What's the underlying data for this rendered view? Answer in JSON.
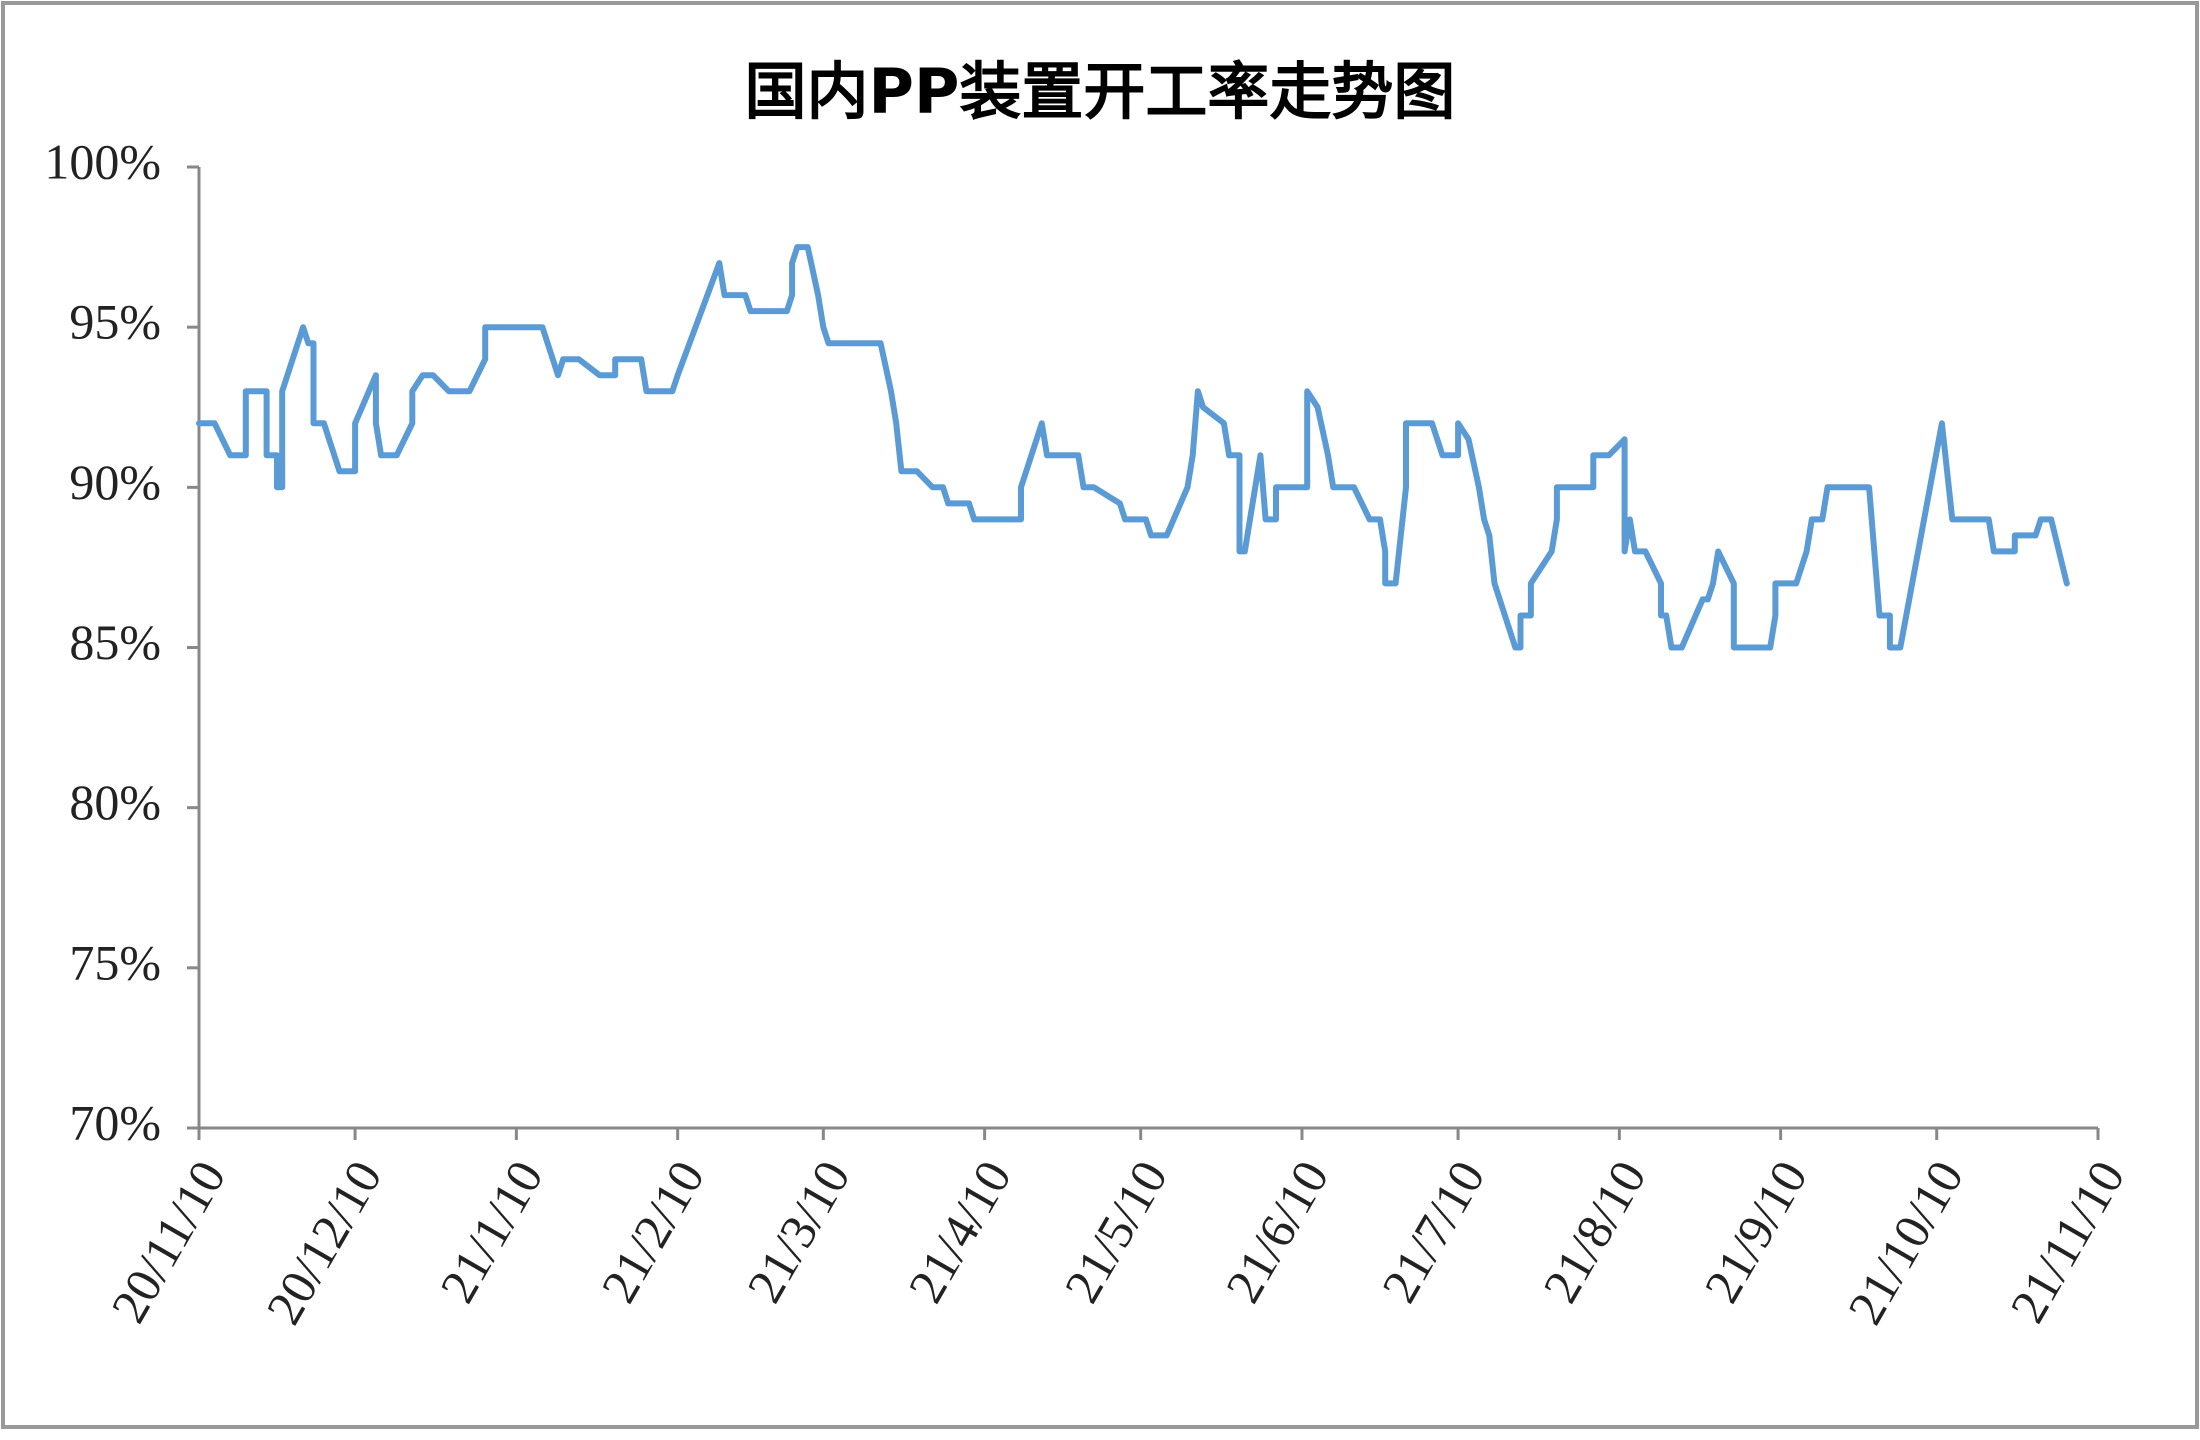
{
  "chart_data": {
    "type": "line",
    "title": "国内PP装置开工率走势图",
    "x": [
      "2020-11-10",
      "2020-11-13",
      "2020-11-16",
      "2020-11-19",
      "2020-11-19",
      "2020-11-23",
      "2020-11-23",
      "2020-11-25",
      "2020-11-25",
      "2020-11-26",
      "2020-11-26",
      "2020-11-30",
      "2020-12-01",
      "2020-12-02",
      "2020-12-02",
      "2020-12-04",
      "2020-12-07",
      "2020-12-10",
      "2020-12-10",
      "2020-12-14",
      "2020-12-14",
      "2020-12-15",
      "2020-12-18",
      "2020-12-21",
      "2020-12-21",
      "2020-12-23",
      "2020-12-25",
      "2020-12-28",
      "2021-01-01",
      "2021-01-04",
      "2021-01-04",
      "2021-01-15",
      "2021-01-18",
      "2021-01-19",
      "2021-01-22",
      "2021-01-26",
      "2021-01-29",
      "2021-01-29",
      "2021-02-03",
      "2021-02-04",
      "2021-02-09",
      "2021-02-10",
      "2021-02-18",
      "2021-02-19",
      "2021-02-23",
      "2021-02-24",
      "2021-03-03",
      "2021-03-04",
      "2021-03-04",
      "2021-03-05",
      "2021-03-07",
      "2021-03-09",
      "2021-03-10",
      "2021-03-11",
      "2021-03-21",
      "2021-03-23",
      "2021-03-24",
      "2021-03-25",
      "2021-03-28",
      "2021-03-31",
      "2021-04-02",
      "2021-04-03",
      "2021-04-07",
      "2021-04-08",
      "2021-04-17",
      "2021-04-17",
      "2021-04-21",
      "2021-04-22",
      "2021-04-28",
      "2021-04-29",
      "2021-05-01",
      "2021-05-06",
      "2021-05-07",
      "2021-05-11",
      "2021-05-12",
      "2021-05-15",
      "2021-05-19",
      "2021-05-20",
      "2021-05-21",
      "2021-05-22",
      "2021-05-26",
      "2021-05-27",
      "2021-05-29",
      "2021-05-29",
      "2021-05-30",
      "2021-06-02",
      "2021-06-03",
      "2021-06-05",
      "2021-06-05",
      "2021-06-11",
      "2021-06-11",
      "2021-06-13",
      "2021-06-15",
      "2021-06-16",
      "2021-06-20",
      "2021-06-23",
      "2021-06-25",
      "2021-06-26",
      "2021-06-26",
      "2021-06-28",
      "2021-06-30",
      "2021-06-30",
      "2021-07-05",
      "2021-07-07",
      "2021-07-10",
      "2021-07-10",
      "2021-07-12",
      "2021-07-14",
      "2021-07-15",
      "2021-07-16",
      "2021-07-17",
      "2021-07-18",
      "2021-07-21",
      "2021-07-22",
      "2021-07-22",
      "2021-07-24",
      "2021-07-24",
      "2021-07-28",
      "2021-07-29",
      "2021-07-29",
      "2021-08-05",
      "2021-08-05",
      "2021-08-08",
      "2021-08-11",
      "2021-08-11",
      "2021-08-12",
      "2021-08-13",
      "2021-08-15",
      "2021-08-18",
      "2021-08-18",
      "2021-08-19",
      "2021-08-20",
      "2021-08-22",
      "2021-08-26",
      "2021-08-27",
      "2021-08-28",
      "2021-08-29",
      "2021-08-29",
      "2021-09-01",
      "2021-09-01",
      "2021-09-08",
      "2021-09-09",
      "2021-09-09",
      "2021-09-13",
      "2021-09-15",
      "2021-09-16",
      "2021-09-18",
      "2021-09-19",
      "2021-09-27",
      "2021-09-29",
      "2021-10-01",
      "2021-10-01",
      "2021-10-03",
      "2021-10-11",
      "2021-10-13",
      "2021-10-20",
      "2021-10-21",
      "2021-10-25",
      "2021-10-25",
      "2021-10-29",
      "2021-10-30",
      "2021-11-01",
      "2021-11-04"
    ],
    "values": [
      92,
      92,
      91,
      91,
      93,
      93,
      91,
      91,
      90,
      90,
      93,
      95,
      94.5,
      94.5,
      92,
      92,
      90.5,
      90.5,
      92,
      93.5,
      92,
      91,
      91,
      92,
      93,
      93.5,
      93.5,
      93,
      93,
      94,
      95,
      95,
      93.5,
      94,
      94,
      93.5,
      93.5,
      94,
      94,
      93,
      93,
      93.5,
      97,
      96,
      96,
      95.5,
      95.5,
      96,
      97,
      97.5,
      97.5,
      96,
      95,
      94.5,
      94.5,
      93,
      92,
      90.5,
      90.5,
      90,
      90,
      89.5,
      89.5,
      89,
      89,
      90,
      92,
      91,
      91,
      90,
      90,
      89.5,
      89,
      89,
      88.5,
      88.5,
      90,
      91,
      93,
      92.5,
      92,
      91,
      91,
      88,
      88,
      91,
      89,
      89,
      90,
      90,
      93,
      92.5,
      91,
      90,
      90,
      89,
      89,
      88,
      87,
      87,
      90,
      92,
      92,
      91,
      91,
      92,
      91.5,
      90,
      89,
      88.5,
      87,
      86.5,
      85,
      85,
      86,
      86,
      87,
      88,
      89,
      90,
      90,
      91,
      91,
      91.5,
      88,
      89,
      88,
      88,
      87,
      86,
      86,
      85,
      85,
      86.5,
      86.5,
      87,
      88,
      88,
      87,
      85,
      85,
      86,
      87,
      87,
      88,
      89,
      89,
      90,
      90,
      86,
      86,
      85,
      85,
      92,
      89,
      89,
      88,
      88,
      88.5,
      88.5,
      89,
      89,
      87
    ],
    "color": "#5b9bd5",
    "xlim": [
      "2020-11-10",
      "2021-11-10"
    ],
    "xticks": [
      {
        "value": "2020-11-10",
        "label": "20/11/10"
      },
      {
        "value": "2020-12-10",
        "label": "20/12/10"
      },
      {
        "value": "2021-01-10",
        "label": "21/1/10"
      },
      {
        "value": "2021-02-10",
        "label": "21/2/10"
      },
      {
        "value": "2021-03-10",
        "label": "21/3/10"
      },
      {
        "value": "2021-04-10",
        "label": "21/4/10"
      },
      {
        "value": "2021-05-10",
        "label": "21/5/10"
      },
      {
        "value": "2021-06-10",
        "label": "21/6/10"
      },
      {
        "value": "2021-07-10",
        "label": "21/7/10"
      },
      {
        "value": "2021-08-10",
        "label": "21/8/10"
      },
      {
        "value": "2021-09-10",
        "label": "21/9/10"
      },
      {
        "value": "2021-10-10",
        "label": "21/10/10"
      },
      {
        "value": "2021-11-10",
        "label": "21/11/10"
      }
    ],
    "ylim": [
      70,
      100
    ],
    "yticks": [
      {
        "value": 70,
        "label": "70%"
      },
      {
        "value": 75,
        "label": "75%"
      },
      {
        "value": 80,
        "label": "80%"
      },
      {
        "value": 85,
        "label": "85%"
      },
      {
        "value": 90,
        "label": "90%"
      },
      {
        "value": 95,
        "label": "95%"
      },
      {
        "value": 100,
        "label": "100%"
      }
    ],
    "grid": false
  }
}
